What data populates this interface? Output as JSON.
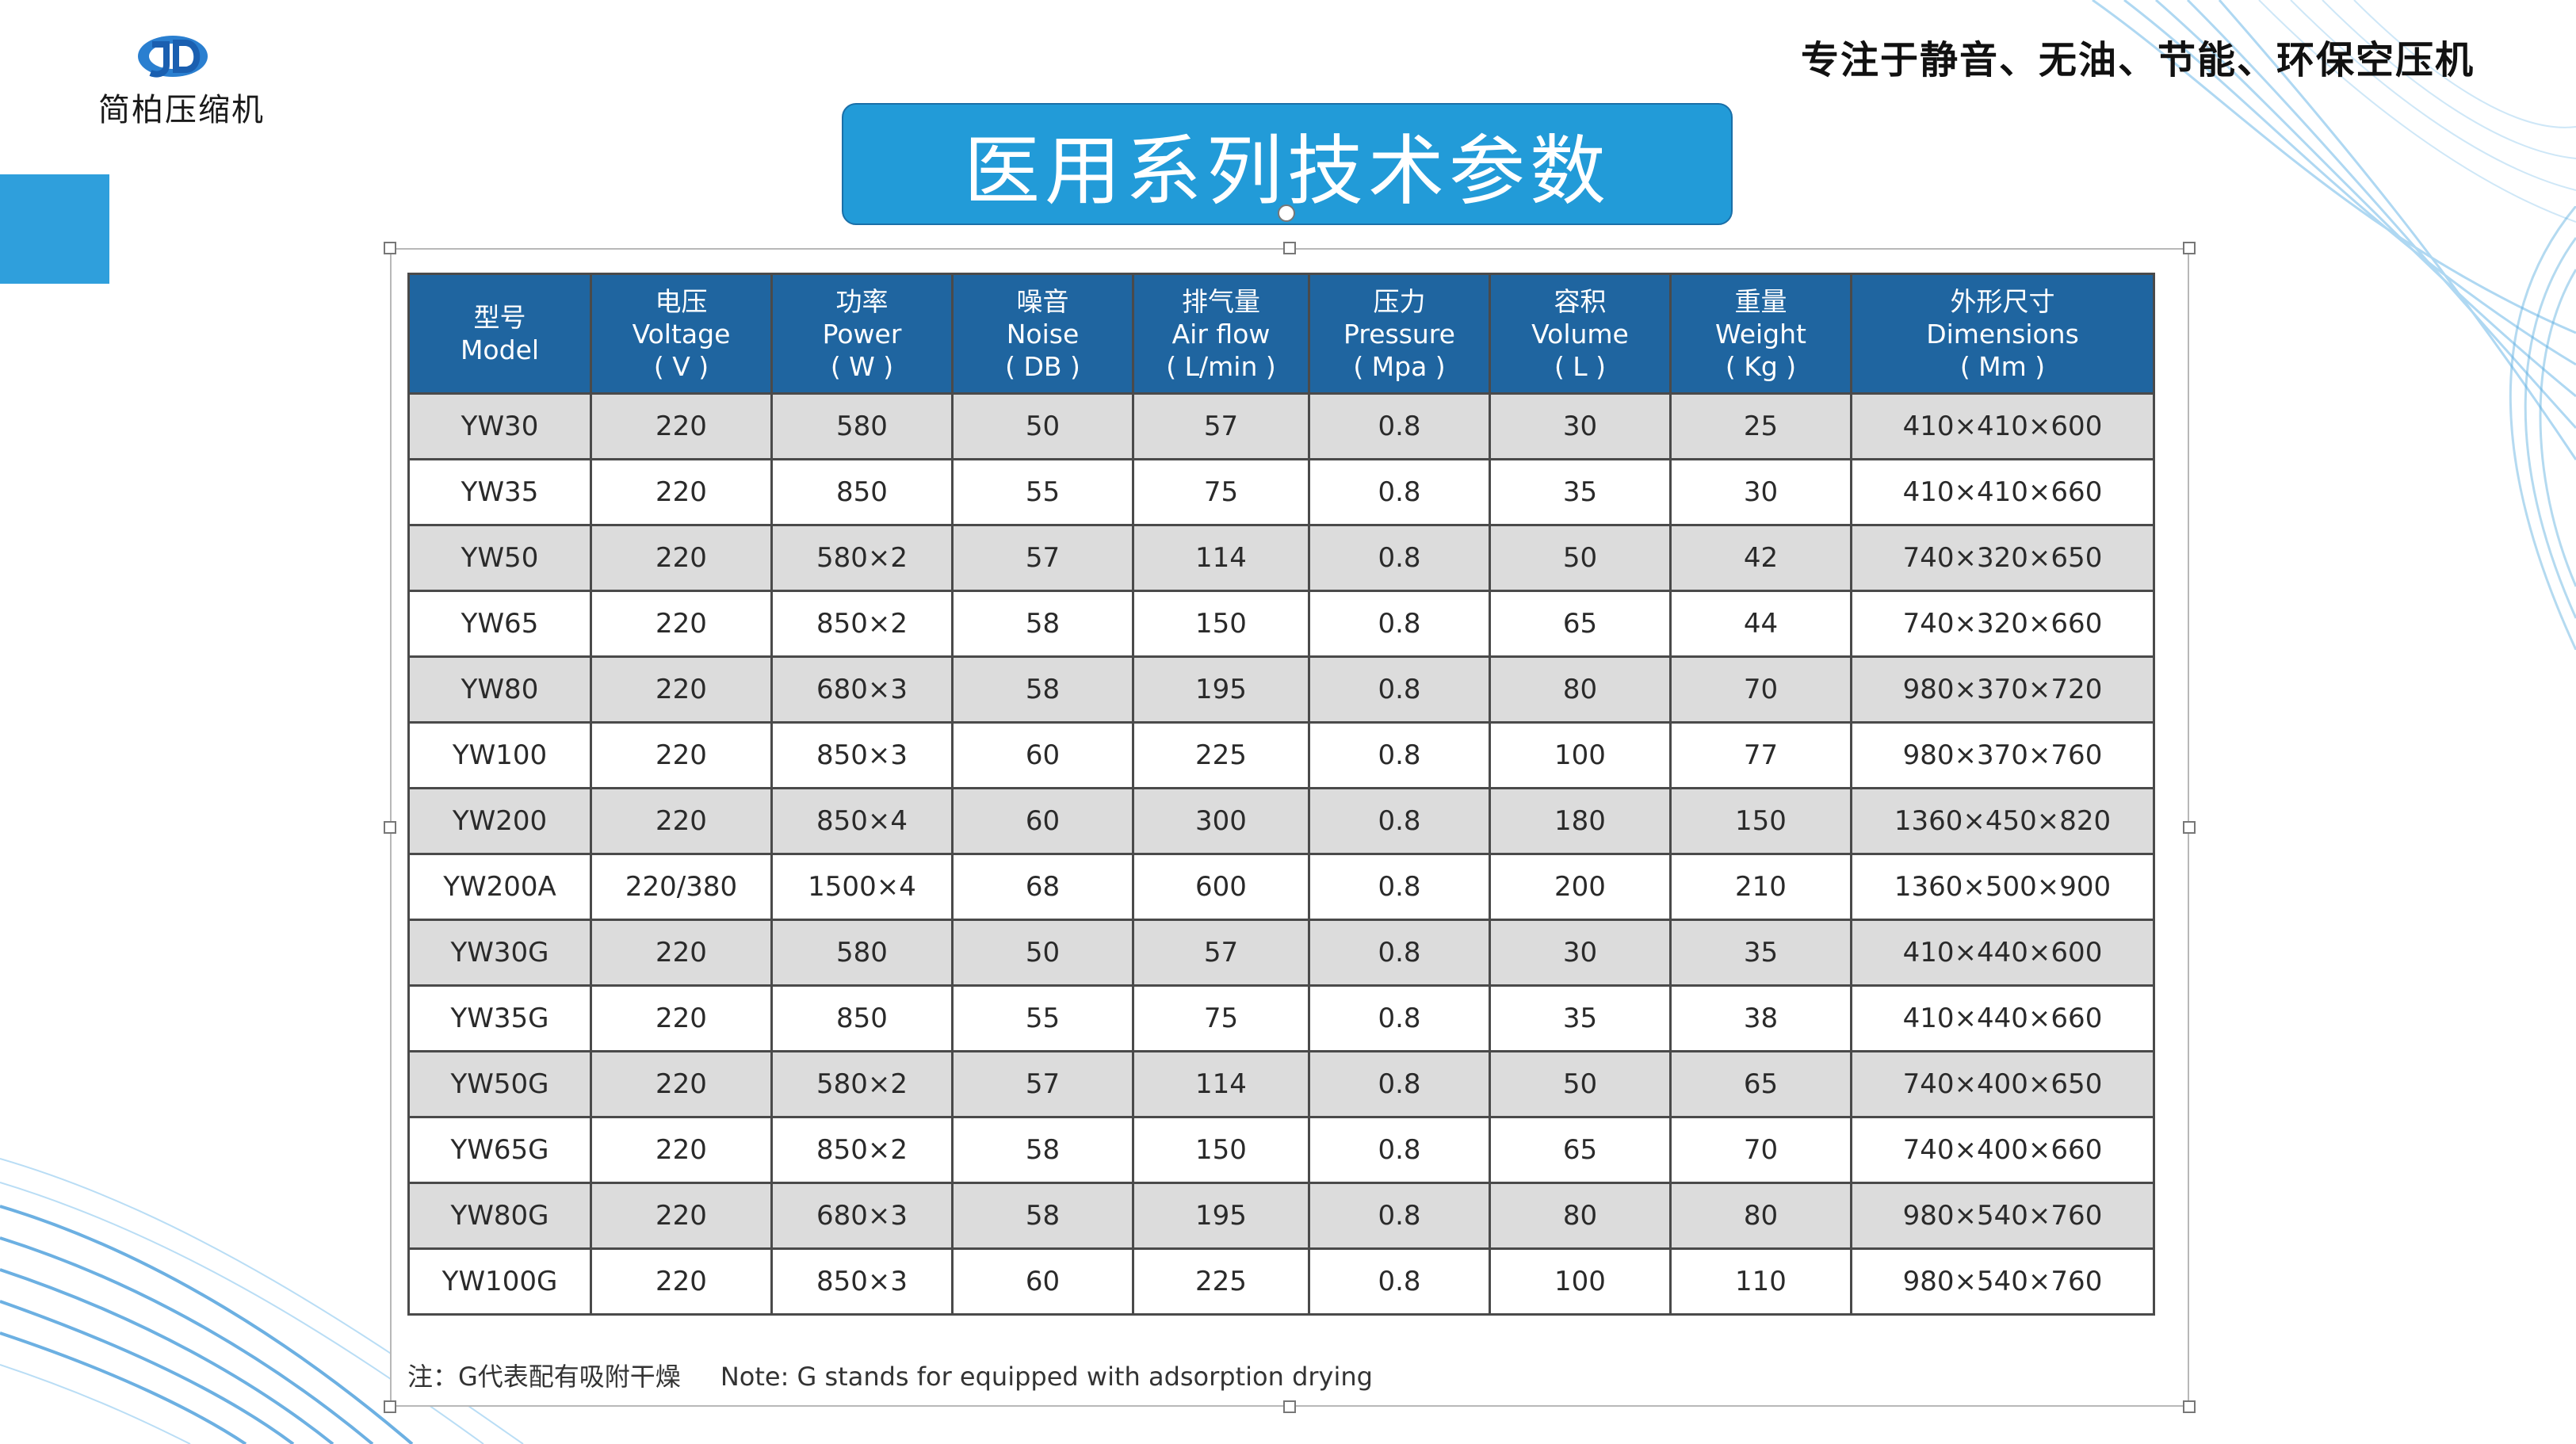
{
  "brand": {
    "logo_text": "简柏压缩机",
    "slogan": "专注于静音、无油、节能、环保空压机"
  },
  "colors": {
    "banner": "#229bd8",
    "header": "#1f65a0",
    "accent": "#2f9fdc"
  },
  "title": "医用系列技术参数",
  "table": {
    "headers": [
      {
        "cn": "型号",
        "en": "Model",
        "unit": ""
      },
      {
        "cn": "电压",
        "en": "Voltage",
        "unit": "( V )"
      },
      {
        "cn": "功率",
        "en": "Power",
        "unit": "( W )"
      },
      {
        "cn": "噪音",
        "en": "Noise",
        "unit": "( DB )"
      },
      {
        "cn": "排气量",
        "en": "Air flow",
        "unit": "( L/min )"
      },
      {
        "cn": "压力",
        "en": "Pressure",
        "unit": "( Mpa )"
      },
      {
        "cn": "容积",
        "en": "Volume",
        "unit": "( L )"
      },
      {
        "cn": "重量",
        "en": "Weight",
        "unit": "( Kg )"
      },
      {
        "cn": "外形尺寸",
        "en": "Dimensions",
        "unit": "( Mm )"
      }
    ],
    "rows": [
      [
        "YW30",
        "220",
        "580",
        "50",
        "57",
        "0.8",
        "30",
        "25",
        "410×410×600"
      ],
      [
        "YW35",
        "220",
        "850",
        "55",
        "75",
        "0.8",
        "35",
        "30",
        "410×410×660"
      ],
      [
        "YW50",
        "220",
        "580×2",
        "57",
        "114",
        "0.8",
        "50",
        "42",
        "740×320×650"
      ],
      [
        "YW65",
        "220",
        "850×2",
        "58",
        "150",
        "0.8",
        "65",
        "44",
        "740×320×660"
      ],
      [
        "YW80",
        "220",
        "680×3",
        "58",
        "195",
        "0.8",
        "80",
        "70",
        "980×370×720"
      ],
      [
        "YW100",
        "220",
        "850×3",
        "60",
        "225",
        "0.8",
        "100",
        "77",
        "980×370×760"
      ],
      [
        "YW200",
        "220",
        "850×4",
        "60",
        "300",
        "0.8",
        "180",
        "150",
        "1360×450×820"
      ],
      [
        "YW200A",
        "220/380",
        "1500×4",
        "68",
        "600",
        "0.8",
        "200",
        "210",
        "1360×500×900"
      ],
      [
        "YW30G",
        "220",
        "580",
        "50",
        "57",
        "0.8",
        "30",
        "35",
        "410×440×600"
      ],
      [
        "YW35G",
        "220",
        "850",
        "55",
        "75",
        "0.8",
        "35",
        "38",
        "410×440×660"
      ],
      [
        "YW50G",
        "220",
        "580×2",
        "57",
        "114",
        "0.8",
        "50",
        "65",
        "740×400×650"
      ],
      [
        "YW65G",
        "220",
        "850×2",
        "58",
        "150",
        "0.8",
        "65",
        "70",
        "740×400×660"
      ],
      [
        "YW80G",
        "220",
        "680×3",
        "58",
        "195",
        "0.8",
        "80",
        "80",
        "980×540×760"
      ],
      [
        "YW100G",
        "220",
        "850×3",
        "60",
        "225",
        "0.8",
        "100",
        "110",
        "980×540×760"
      ]
    ]
  },
  "note": {
    "cn": "注：G代表配有吸附干燥",
    "en": "Note: G stands for equipped with adsorption drying"
  }
}
